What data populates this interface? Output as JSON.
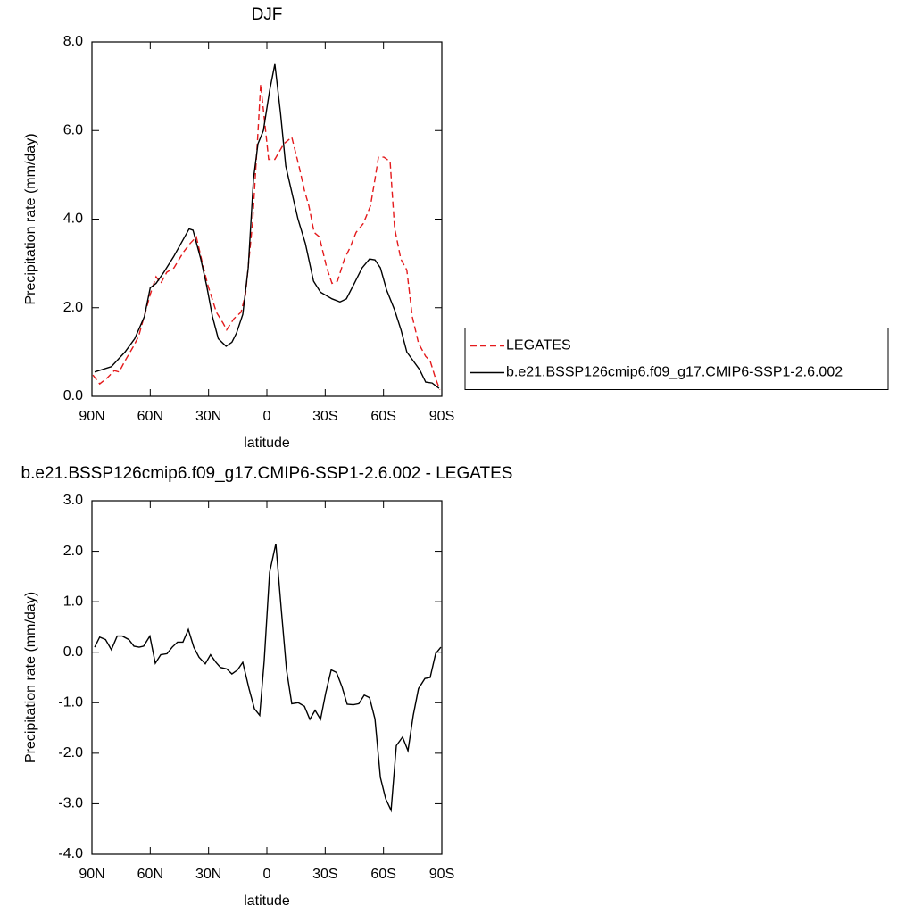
{
  "chart_data": [
    {
      "type": "line",
      "title": "DJF",
      "xlabel": "latitude",
      "ylabel": "Precipitation rate (mm/day)",
      "xlim": [
        90,
        -90
      ],
      "ylim": [
        0,
        8
      ],
      "xticks": [
        {
          "value": 90,
          "label": "90N"
        },
        {
          "value": 60,
          "label": "60N"
        },
        {
          "value": 30,
          "label": "30N"
        },
        0,
        {
          "value": -30,
          "label": "30S"
        },
        {
          "value": -60,
          "label": "60S"
        },
        {
          "value": -90,
          "label": "90S"
        }
      ],
      "yticks": [
        {
          "value": 0,
          "label": "0.0"
        },
        {
          "value": 2,
          "label": "2.0"
        },
        {
          "value": 4,
          "label": "4.0"
        },
        {
          "value": 6,
          "label": "6.0"
        },
        {
          "value": 8,
          "label": "8.0"
        }
      ],
      "legend": "right",
      "series": [
        {
          "name": "LEGATES",
          "color": "#e41a1c",
          "dash": true,
          "x": [
            89.5,
            86,
            82,
            78.5,
            76,
            73,
            69,
            66,
            62.5,
            60,
            57,
            54.6,
            51.5,
            47.8,
            43,
            39.5,
            36.3,
            32.6,
            30.3,
            26,
            22.5,
            20.7,
            17,
            13.3,
            11,
            7.4,
            4.6,
            3.2,
            -0.9,
            -4.1,
            -8.7,
            -12.8,
            -16.5,
            -19.3,
            -21.6,
            -24.3,
            -27,
            -30.8,
            -33.5,
            -36.3,
            -39.9,
            -42.7,
            -45.9,
            -49.6,
            -53.3,
            -55.6,
            -57.4,
            -60.2,
            -63.4,
            -65.7,
            -68.9,
            -72,
            -74.8,
            -78,
            -81.7,
            -84,
            -86.8,
            -89
          ],
          "values": [
            0.48,
            0.28,
            0.42,
            0.58,
            0.55,
            0.8,
            1.1,
            1.35,
            1.9,
            2.3,
            2.7,
            2.55,
            2.8,
            2.9,
            3.25,
            3.45,
            3.6,
            2.9,
            2.5,
            1.9,
            1.65,
            1.5,
            1.75,
            1.9,
            2.3,
            3.9,
            5.95,
            7.05,
            5.35,
            5.35,
            5.7,
            5.85,
            5.2,
            4.65,
            4.3,
            3.7,
            3.6,
            2.9,
            2.55,
            2.6,
            3.1,
            3.35,
            3.7,
            3.9,
            4.3,
            4.9,
            5.4,
            5.4,
            5.3,
            3.8,
            3.1,
            2.85,
            1.8,
            1.2,
            0.9,
            0.8,
            0.4,
            0.15
          ]
        },
        {
          "name": "b.e21.BSSP126cmip6.f09_g17.CMIP6-SSP1-2.6.002",
          "color": "#000000",
          "dash": false,
          "x": [
            88.6,
            80,
            73,
            68,
            63,
            60,
            57,
            53,
            48,
            40,
            38,
            34,
            31,
            28,
            25,
            21,
            18,
            15.6,
            12.4,
            9.6,
            6.9,
            4.6,
            1.8,
            -1.4,
            -4.1,
            -7,
            -9.7,
            -16,
            -19.8,
            -24,
            -27.6,
            -33.5,
            -37.6,
            -40.9,
            -45,
            -49,
            -52.8,
            -55.6,
            -58.4,
            -61.6,
            -65.7,
            -69,
            -72,
            -78.6,
            -81.7,
            -85,
            -88.6
          ],
          "values": [
            0.55,
            0.67,
            1.0,
            1.3,
            1.8,
            2.45,
            2.55,
            2.8,
            3.15,
            3.78,
            3.75,
            3.1,
            2.5,
            1.8,
            1.3,
            1.13,
            1.22,
            1.43,
            1.85,
            2.9,
            4.9,
            5.7,
            6.0,
            6.9,
            7.5,
            6.4,
            5.2,
            4.0,
            3.45,
            2.6,
            2.35,
            2.2,
            2.13,
            2.2,
            2.55,
            2.9,
            3.1,
            3.08,
            2.9,
            2.4,
            1.95,
            1.5,
            1.0,
            0.6,
            0.32,
            0.3,
            0.18
          ]
        }
      ]
    },
    {
      "type": "line",
      "title": "b.e21.BSSP126cmip6.f09_g17.CMIP6-SSP1-2.6.002 - LEGATES",
      "xlabel": "latitude",
      "ylabel": "Precipitation rate (mm/day)",
      "xlim": [
        90,
        -90
      ],
      "ylim": [
        -4,
        3
      ],
      "xticks": [
        {
          "value": 90,
          "label": "90N"
        },
        {
          "value": 60,
          "label": "60N"
        },
        {
          "value": 30,
          "label": "30N"
        },
        0,
        {
          "value": -30,
          "label": "30S"
        },
        {
          "value": -60,
          "label": "60S"
        },
        {
          "value": -90,
          "label": "90S"
        }
      ],
      "yticks": [
        {
          "value": -4,
          "label": "-4.0"
        },
        {
          "value": -3,
          "label": "-3.0"
        },
        {
          "value": -2,
          "label": "-2.0"
        },
        {
          "value": -1,
          "label": "-1.0"
        },
        {
          "value": 0,
          "label": "0.0"
        },
        {
          "value": 1,
          "label": "1.0"
        },
        {
          "value": 2,
          "label": "2.0"
        },
        {
          "value": 3,
          "label": "3.0"
        }
      ],
      "series": [
        {
          "color": "#000000",
          "dash": false,
          "x": [
            88.6,
            86,
            83,
            80,
            77,
            74.4,
            71,
            68.4,
            65.7,
            63.4,
            60.2,
            57.4,
            54.6,
            51.4,
            48.7,
            46,
            43.2,
            40.4,
            37.6,
            34.9,
            31.7,
            29,
            26.2,
            23.9,
            20.7,
            18,
            15.1,
            12.4,
            9.2,
            6.4,
            3.7,
            1.4,
            -1.4,
            -4.6,
            -7.4,
            -10.1,
            -12.8,
            -16.1,
            -19.3,
            -22.1,
            -24.8,
            -27.6,
            -30.3,
            -33.1,
            -35.8,
            -38.6,
            -41.3,
            -44.5,
            -47.3,
            -50.1,
            -52.8,
            -55.6,
            -58.4,
            -61.1,
            -63.9,
            -66.6,
            -69.8,
            -72.6,
            -75.3,
            -78,
            -81.3,
            -84,
            -86.8,
            -89.5
          ],
          "values": [
            0.1,
            0.3,
            0.25,
            0.05,
            0.32,
            0.32,
            0.25,
            0.12,
            0.1,
            0.12,
            0.32,
            -0.22,
            -0.05,
            -0.03,
            0.1,
            0.2,
            0.2,
            0.45,
            0.1,
            -0.1,
            -0.23,
            -0.05,
            -0.2,
            -0.3,
            -0.33,
            -0.43,
            -0.35,
            -0.2,
            -0.72,
            -1.12,
            -1.25,
            -0.18,
            1.58,
            2.15,
            0.85,
            -0.35,
            -1.02,
            -1.0,
            -1.07,
            -1.33,
            -1.15,
            -1.33,
            -0.8,
            -0.35,
            -0.4,
            -0.68,
            -1.03,
            -1.04,
            -1.02,
            -0.85,
            -0.9,
            -1.32,
            -2.48,
            -2.9,
            -3.13,
            -1.85,
            -1.68,
            -1.95,
            -1.25,
            -0.72,
            -0.52,
            -0.5,
            -0.03,
            0.1
          ]
        }
      ]
    }
  ]
}
